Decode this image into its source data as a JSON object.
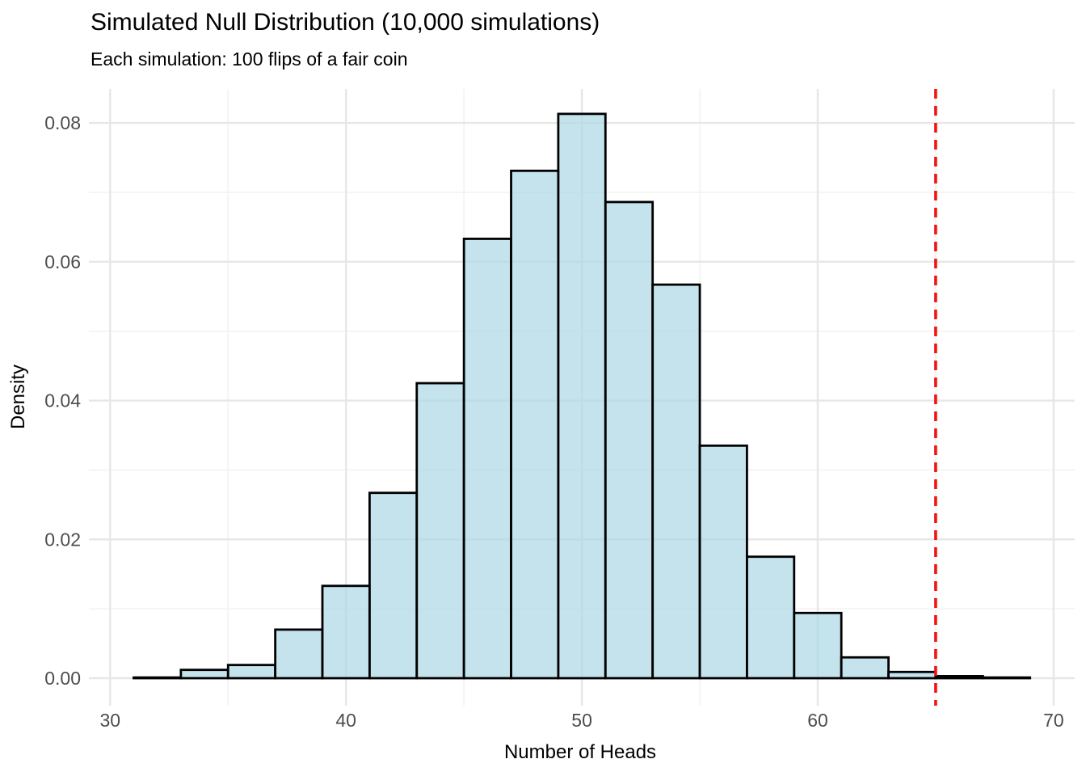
{
  "header": {
    "title": "Simulated Null Distribution (10,000 simulations)",
    "subtitle": "Each simulation: 100 flips of a fair coin"
  },
  "chart_data": {
    "type": "bar",
    "subtype": "histogram",
    "title": "Simulated Null Distribution (10,000 simulations)",
    "subtitle": "Each simulation: 100 flips of a fair coin",
    "xlabel": "Number of Heads",
    "ylabel": "Density",
    "x_ticks": [
      30,
      40,
      50,
      60,
      70
    ],
    "x_minor_ticks": [
      35,
      45,
      55,
      65
    ],
    "y_ticks": [
      0,
      0.02,
      0.04,
      0.06,
      0.08
    ],
    "y_tick_labels": [
      "0.00",
      "0.02",
      "0.04",
      "0.06",
      "0.08"
    ],
    "y_minor_ticks": [
      0.01,
      0.03,
      0.05,
      0.07
    ],
    "xlim": [
      29.1,
      70.9
    ],
    "ylim": [
      0,
      0.0849
    ],
    "grid": "major+minor",
    "legend": false,
    "binwidth": 2,
    "bins": [
      {
        "x0": 31,
        "x1": 33,
        "density": 0.0001
      },
      {
        "x0": 33,
        "x1": 35,
        "density": 0.0012
      },
      {
        "x0": 35,
        "x1": 37,
        "density": 0.0019
      },
      {
        "x0": 37,
        "x1": 39,
        "density": 0.007
      },
      {
        "x0": 39,
        "x1": 41,
        "density": 0.0133
      },
      {
        "x0": 41,
        "x1": 43,
        "density": 0.0267
      },
      {
        "x0": 43,
        "x1": 45,
        "density": 0.0425
      },
      {
        "x0": 45,
        "x1": 47,
        "density": 0.0633
      },
      {
        "x0": 47,
        "x1": 49,
        "density": 0.0731
      },
      {
        "x0": 49,
        "x1": 51,
        "density": 0.0813
      },
      {
        "x0": 51,
        "x1": 53,
        "density": 0.0686
      },
      {
        "x0": 53,
        "x1": 55,
        "density": 0.0567
      },
      {
        "x0": 55,
        "x1": 57,
        "density": 0.0335
      },
      {
        "x0": 57,
        "x1": 59,
        "density": 0.0175
      },
      {
        "x0": 59,
        "x1": 61,
        "density": 0.0094
      },
      {
        "x0": 61,
        "x1": 63,
        "density": 0.003
      },
      {
        "x0": 63,
        "x1": 65,
        "density": 0.0009
      },
      {
        "x0": 65,
        "x1": 67,
        "density": 0.0003
      },
      {
        "x0": 67,
        "x1": 69,
        "density": 0.0001
      }
    ],
    "reference_line": {
      "orientation": "vertical",
      "x": 65,
      "style": "dashed",
      "color": "#F01512"
    },
    "colors": {
      "bar_fill": "#ADD8E6",
      "bar_fill_opacity": 0.72,
      "bar_stroke": "#000000",
      "grid_major": "#E7E7E7",
      "grid_minor": "#F2F2F2",
      "tick_label": "#4D4D4D",
      "axis_title": "#000000",
      "background": "#FFFFFF"
    }
  }
}
